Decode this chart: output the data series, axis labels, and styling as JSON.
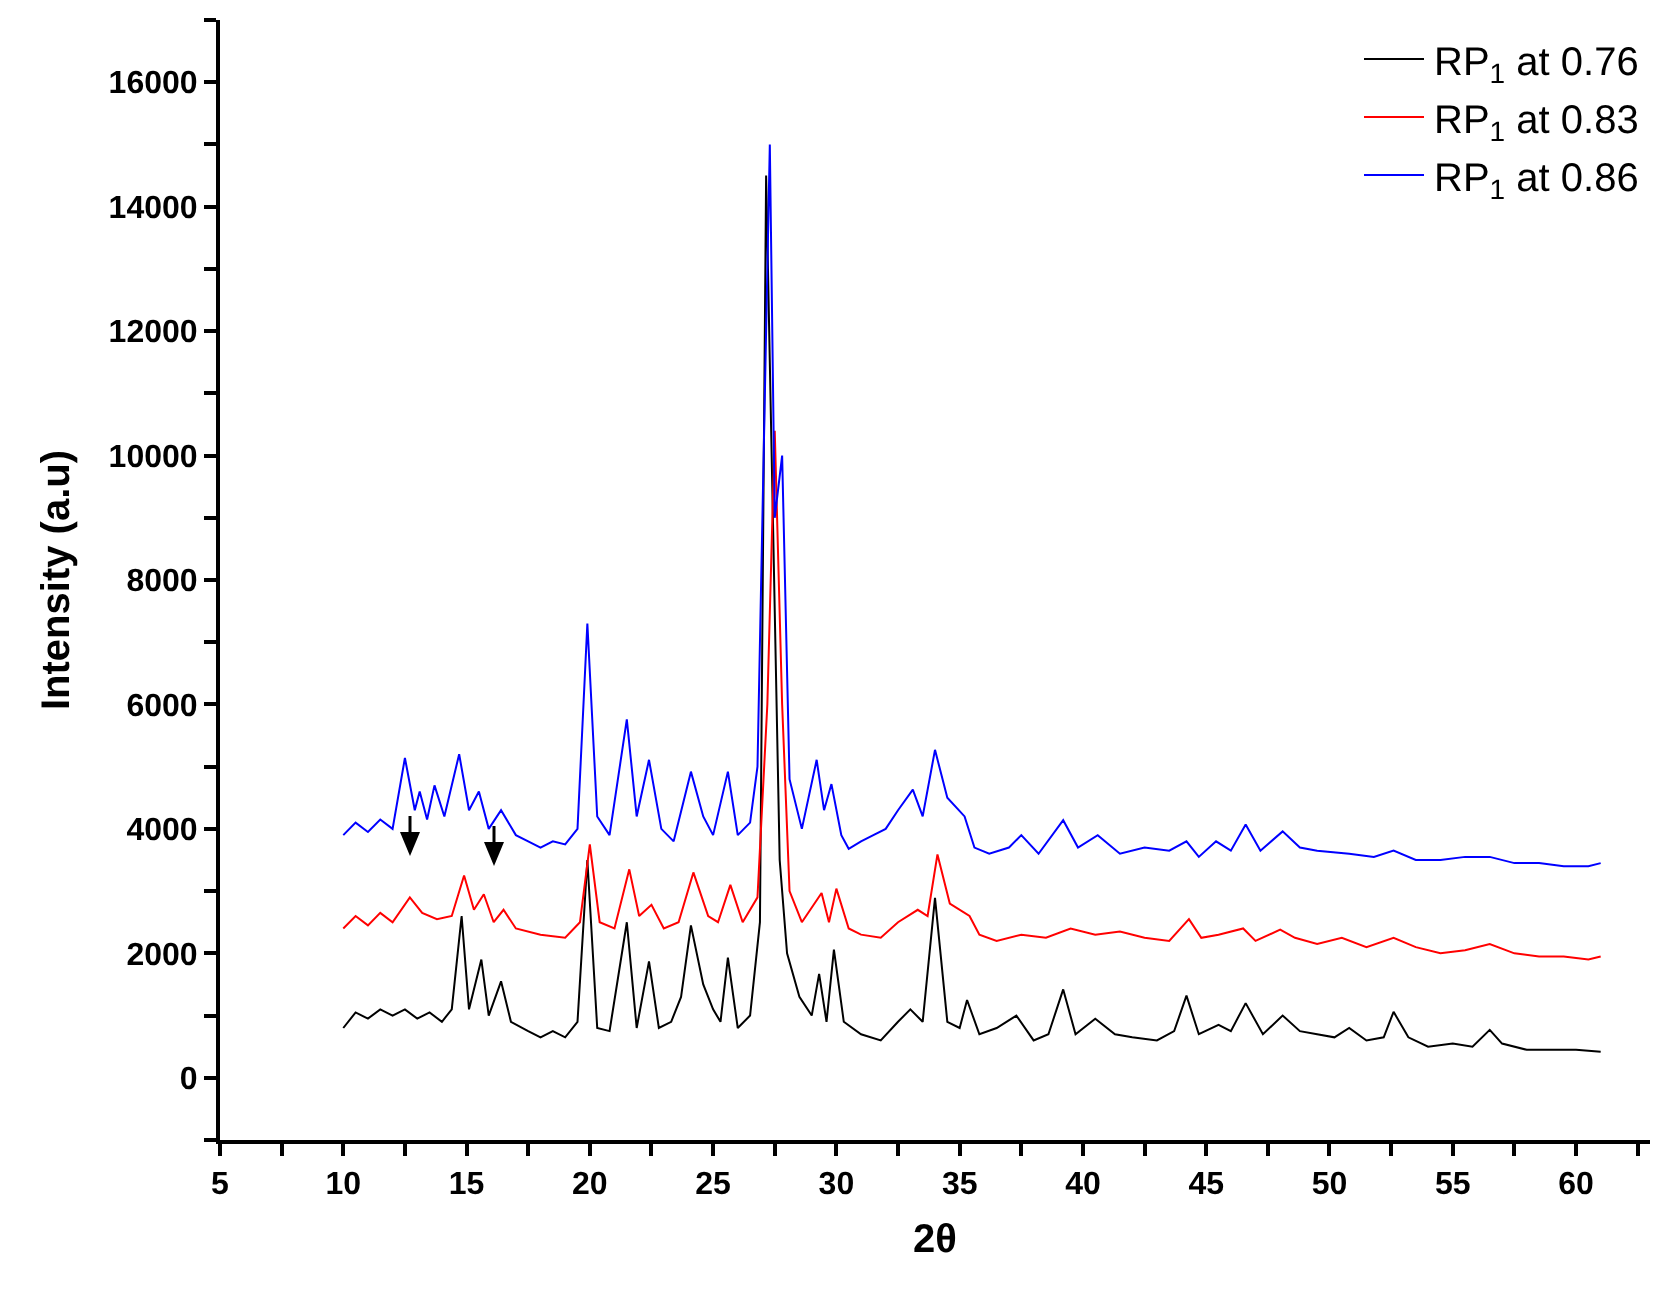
{
  "chart_data": {
    "type": "line",
    "xlabel": "2θ",
    "ylabel": "Intensity (a.u)",
    "xlim": [
      5,
      63
    ],
    "ylim": [
      -1000,
      17000
    ],
    "xticks": [
      5,
      {
        "value": 7.5,
        "label": null
      },
      10,
      {
        "value": 12.5,
        "label": null
      },
      15,
      {
        "value": 17.5,
        "label": null
      },
      20,
      {
        "value": 22.5,
        "label": null
      },
      25,
      {
        "value": 27.5,
        "label": null
      },
      30,
      {
        "value": 32.5,
        "label": null
      },
      35,
      {
        "value": 37.5,
        "label": null
      },
      40,
      {
        "value": 42.5,
        "label": null
      },
      45,
      {
        "value": 47.5,
        "label": null
      },
      50,
      {
        "value": 52.5,
        "label": null
      },
      55,
      {
        "value": 57.5,
        "label": null
      },
      60,
      {
        "value": 62.5,
        "label": null
      }
    ],
    "yticks": [
      {
        "value": -1000,
        "label": null
      },
      0,
      {
        "value": 1000,
        "label": null
      },
      2000,
      {
        "value": 3000,
        "label": null
      },
      4000,
      {
        "value": 5000,
        "label": null
      },
      6000,
      {
        "value": 7000,
        "label": null
      },
      8000,
      {
        "value": 9000,
        "label": null
      },
      10000,
      {
        "value": 11000,
        "label": null
      },
      12000,
      {
        "value": 13000,
        "label": null
      },
      14000,
      {
        "value": 15000,
        "label": null
      },
      16000,
      {
        "value": 17000,
        "label": null
      }
    ],
    "grid": false,
    "legend": "top right",
    "marker": "none",
    "line_style": "solid",
    "series": [
      {
        "name": "RP$_{1}$ at 0.76",
        "color": "#000000",
        "x": [
          10,
          10.5,
          11,
          11.5,
          12,
          12.5,
          13,
          13.5,
          14,
          14.4,
          14.8,
          15.1,
          15.6,
          15.9,
          16.4,
          16.8,
          17.5,
          18,
          18.5,
          19,
          19.5,
          19.9,
          20.3,
          20.8,
          21.5,
          21.9,
          22.4,
          22.8,
          23.3,
          23.7,
          24.1,
          24.6,
          25,
          25.3,
          25.6,
          26,
          26.5,
          26.9,
          27.15,
          27.7,
          28,
          28.5,
          29,
          29.3,
          29.6,
          29.9,
          30.3,
          31,
          31.8,
          32.5,
          33,
          33.5,
          34,
          34.5,
          35,
          35.3,
          35.8,
          36.5,
          37.3,
          38,
          38.6,
          39.2,
          39.7,
          40.5,
          41.3,
          42,
          43,
          43.7,
          44.2,
          44.7,
          45.5,
          46,
          46.6,
          47.3,
          48.1,
          48.8,
          49.5,
          50.2,
          50.8,
          51.5,
          52.2,
          52.6,
          53.2,
          54,
          55,
          55.8,
          56.5,
          57,
          58,
          59,
          60,
          61
        ],
        "values": [
          800,
          1050,
          950,
          1100,
          1000,
          1100,
          950,
          1050,
          900,
          1100,
          2600,
          1100,
          1900,
          1000,
          1550,
          900,
          750,
          650,
          750,
          650,
          900,
          3500,
          800,
          750,
          2500,
          800,
          1870,
          800,
          900,
          1300,
          2450,
          1500,
          1100,
          900,
          1930,
          800,
          1000,
          2500,
          14500,
          3500,
          2000,
          1300,
          1000,
          1670,
          900,
          2060,
          900,
          700,
          600,
          900,
          1100,
          900,
          2890,
          900,
          800,
          1250,
          700,
          800,
          1000,
          600,
          700,
          1420,
          700,
          950,
          700,
          650,
          600,
          750,
          1320,
          700,
          850,
          750,
          1200,
          700,
          1000,
          750,
          700,
          650,
          800,
          600,
          650,
          1060,
          650,
          500,
          550,
          500,
          770,
          550,
          450,
          450,
          450,
          420
        ]
      },
      {
        "name": "RP$_{1}$ at 0.83",
        "color": "#ff0000",
        "x": [
          10,
          10.5,
          11,
          11.5,
          12,
          12.7,
          13.2,
          13.8,
          14.4,
          14.9,
          15.3,
          15.7,
          16.1,
          16.5,
          17,
          18,
          19,
          19.6,
          20,
          20.4,
          21,
          21.6,
          22,
          22.5,
          23,
          23.6,
          24.2,
          24.8,
          25.2,
          25.7,
          26.2,
          26.8,
          27.2,
          27.5,
          27.8,
          28.1,
          28.6,
          29.4,
          29.7,
          30,
          30.5,
          31,
          31.8,
          32.5,
          33.3,
          33.7,
          34.1,
          34.6,
          35.4,
          35.8,
          36.5,
          37.5,
          38.5,
          39.5,
          40.5,
          41.5,
          42.5,
          43.5,
          44.3,
          44.8,
          45.5,
          46.5,
          47,
          48,
          48.6,
          49.5,
          50.5,
          51.5,
          52.6,
          53.5,
          54.5,
          55.5,
          56.5,
          57.5,
          58.5,
          59.5,
          60.5,
          61
        ],
        "values": [
          2400,
          2600,
          2450,
          2650,
          2500,
          2900,
          2650,
          2550,
          2600,
          3250,
          2700,
          2950,
          2500,
          2700,
          2400,
          2300,
          2250,
          2500,
          3750,
          2500,
          2400,
          3350,
          2600,
          2780,
          2400,
          2500,
          3300,
          2600,
          2500,
          3100,
          2500,
          2900,
          6000,
          10400,
          6000,
          3000,
          2500,
          2970,
          2500,
          3040,
          2400,
          2300,
          2250,
          2500,
          2700,
          2600,
          3590,
          2800,
          2600,
          2300,
          2200,
          2300,
          2250,
          2400,
          2300,
          2350,
          2250,
          2200,
          2550,
          2250,
          2300,
          2400,
          2200,
          2380,
          2250,
          2150,
          2250,
          2100,
          2250,
          2100,
          2000,
          2050,
          2150,
          2000,
          1950,
          1950,
          1900,
          1950
        ]
      },
      {
        "name": "RP$_{1}$ at 0.86",
        "color": "#0000ff",
        "x": [
          10,
          10.5,
          11,
          11.5,
          12,
          12.5,
          12.9,
          13.1,
          13.4,
          13.7,
          14.1,
          14.7,
          15.1,
          15.5,
          15.9,
          16.4,
          17,
          17.5,
          18,
          18.5,
          19,
          19.5,
          19.9,
          20.3,
          20.8,
          21.5,
          21.9,
          22.4,
          22.9,
          23.4,
          24.1,
          24.6,
          25,
          25.6,
          26,
          26.5,
          26.8,
          27.3,
          27.5,
          27.8,
          28.1,
          28.6,
          29.2,
          29.5,
          29.8,
          30.2,
          30.5,
          31,
          31.5,
          32,
          32.5,
          33.1,
          33.5,
          34,
          34.5,
          35.2,
          35.6,
          36.2,
          37,
          37.5,
          38.2,
          39.2,
          39.8,
          40.6,
          41.5,
          42.5,
          43.5,
          44.2,
          44.7,
          45.4,
          46,
          46.6,
          47.2,
          48.1,
          48.8,
          49.5,
          50.8,
          51.8,
          52.6,
          53.5,
          54.5,
          55.5,
          56.5,
          57.5,
          58.5,
          59.5,
          60.5,
          61
        ],
        "values": [
          3900,
          4100,
          3950,
          4150,
          4000,
          5140,
          4300,
          4600,
          4150,
          4700,
          4200,
          5200,
          4300,
          4600,
          4000,
          4300,
          3900,
          3800,
          3700,
          3800,
          3750,
          4000,
          7300,
          4200,
          3900,
          5760,
          4200,
          5110,
          4000,
          3800,
          4920,
          4200,
          3900,
          4920,
          3900,
          4100,
          5000,
          15000,
          9000,
          10000,
          4800,
          4000,
          5110,
          4300,
          4720,
          3900,
          3680,
          3800,
          3900,
          4000,
          4300,
          4630,
          4200,
          5270,
          4500,
          4200,
          3700,
          3600,
          3700,
          3900,
          3600,
          4140,
          3700,
          3900,
          3600,
          3700,
          3650,
          3800,
          3550,
          3800,
          3650,
          4070,
          3650,
          3960,
          3700,
          3650,
          3600,
          3550,
          3650,
          3500,
          3500,
          3550,
          3550,
          3450,
          3450,
          3400,
          3400,
          3450
        ]
      }
    ]
  }
}
